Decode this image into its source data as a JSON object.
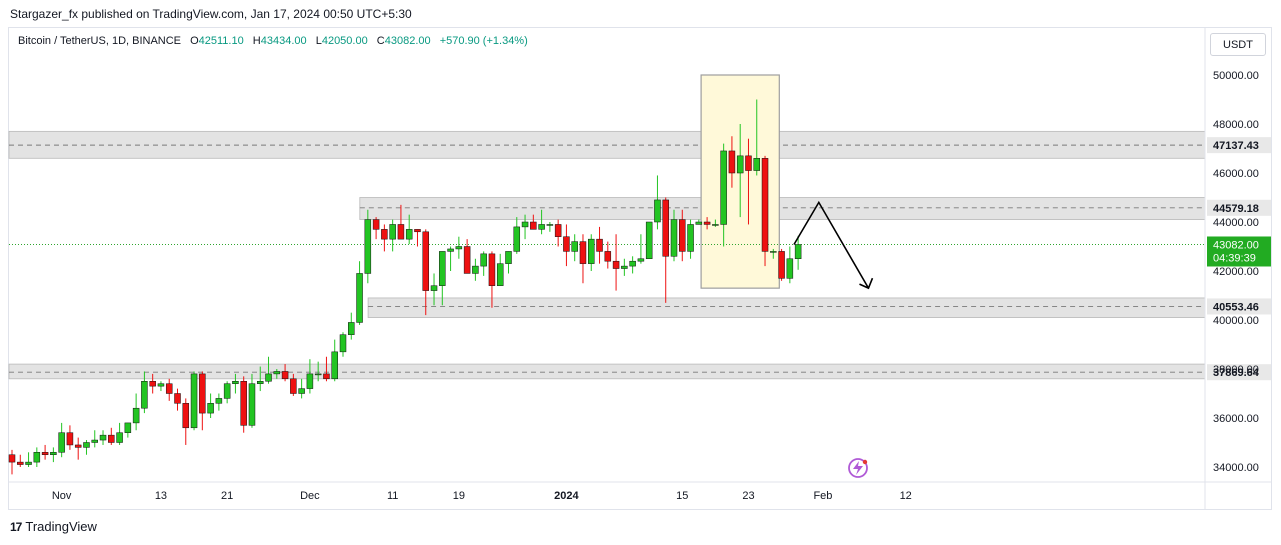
{
  "header": {
    "text": "Stargazer_fx published on TradingView.com, Jan 17, 2024 00:50 UTC+5:30"
  },
  "legend": {
    "symbol": "Bitcoin / TetherUS, 1D, BINANCE",
    "open_label": "O",
    "open": "42511.10",
    "high_label": "H",
    "high": "43434.00",
    "low_label": "L",
    "low": "42050.00",
    "close_label": "C",
    "close": "43082.00",
    "change": "+570.90 (+1.34%)"
  },
  "currency_button": "USDT",
  "footer": {
    "brand": "TradingView",
    "logo": "17"
  },
  "colors": {
    "up": "#22c422",
    "down": "#ee1111",
    "zone": "#e3e3e3",
    "highlight": "#fff9d9",
    "highlight_border": "#9e9e9e",
    "price_line": "#2fa52f"
  },
  "chart_data": {
    "type": "candlestick",
    "symbol": "Bitcoin / TetherUS",
    "interval": "1D",
    "y_ticks": [
      34000,
      36000,
      38000,
      40000,
      42000,
      44000,
      46000,
      48000,
      50000
    ],
    "y_tick_labels": [
      "34000.00",
      "36000.00",
      "38000.00",
      "40000.00",
      "42000.00",
      "44000.00",
      "46000.00",
      "48000.00",
      "50000.00"
    ],
    "x_ticks": [
      {
        "i": 6,
        "label": "Nov",
        "bold": false
      },
      {
        "i": 18,
        "label": "13",
        "bold": false
      },
      {
        "i": 26,
        "label": "21",
        "bold": false
      },
      {
        "i": 36,
        "label": "Dec",
        "bold": false
      },
      {
        "i": 46,
        "label": "11",
        "bold": false
      },
      {
        "i": 54,
        "label": "19",
        "bold": false
      },
      {
        "i": 67,
        "label": "2024",
        "bold": true
      },
      {
        "i": 81,
        "label": "15",
        "bold": false
      },
      {
        "i": 89,
        "label": "23",
        "bold": false
      },
      {
        "i": 98,
        "label": "Feb",
        "bold": false
      },
      {
        "i": 108,
        "label": "12",
        "bold": false
      }
    ],
    "ohlc": [
      [
        34500,
        34700,
        33700,
        34200
      ],
      [
        34200,
        34500,
        34000,
        34100
      ],
      [
        34100,
        34600,
        34000,
        34200
      ],
      [
        34200,
        34800,
        34000,
        34600
      ],
      [
        34600,
        34900,
        34300,
        34500
      ],
      [
        34500,
        34800,
        34200,
        34600
      ],
      [
        34600,
        35800,
        34400,
        35400
      ],
      [
        35400,
        35700,
        34700,
        34900
      ],
      [
        34900,
        35200,
        34300,
        34800
      ],
      [
        34800,
        35100,
        34500,
        35000
      ],
      [
        35000,
        35500,
        34800,
        35100
      ],
      [
        35100,
        35500,
        34900,
        35300
      ],
      [
        35300,
        35600,
        34900,
        35000
      ],
      [
        35000,
        35800,
        34900,
        35400
      ],
      [
        35400,
        35800,
        35200,
        35800
      ],
      [
        35800,
        37000,
        35500,
        36400
      ],
      [
        36400,
        37900,
        36200,
        37500
      ],
      [
        37500,
        37800,
        37000,
        37300
      ],
      [
        37300,
        37500,
        37100,
        37400
      ],
      [
        37400,
        37600,
        36700,
        37000
      ],
      [
        37000,
        37200,
        36300,
        36600
      ],
      [
        36600,
        36800,
        34900,
        35600
      ],
      [
        35600,
        37900,
        35500,
        37800
      ],
      [
        37800,
        37900,
        35500,
        36200
      ],
      [
        36200,
        37000,
        36000,
        36600
      ],
      [
        36600,
        37000,
        36300,
        36800
      ],
      [
        36800,
        37500,
        36600,
        37400
      ],
      [
        37400,
        37800,
        37000,
        37500
      ],
      [
        37500,
        37700,
        35400,
        35700
      ],
      [
        35700,
        37800,
        35600,
        37400
      ],
      [
        37400,
        38100,
        37100,
        37500
      ],
      [
        37500,
        38500,
        37400,
        37800
      ],
      [
        37800,
        38000,
        37600,
        37900
      ],
      [
        37900,
        38200,
        37500,
        37600
      ],
      [
        37600,
        37800,
        36900,
        37000
      ],
      [
        37000,
        37600,
        36800,
        37200
      ],
      [
        37200,
        38400,
        37000,
        37800
      ],
      [
        37800,
        38300,
        37500,
        37800
      ],
      [
        37800,
        38500,
        37500,
        37600
      ],
      [
        37600,
        39200,
        37500,
        38700
      ],
      [
        38700,
        39500,
        38500,
        39400
      ],
      [
        39400,
        40300,
        39200,
        39900
      ],
      [
        39900,
        42400,
        39800,
        41900
      ],
      [
        41900,
        44500,
        41500,
        44100
      ],
      [
        44100,
        44200,
        43300,
        43700
      ],
      [
        43700,
        43900,
        42800,
        43300
      ],
      [
        43300,
        44100,
        42800,
        43900
      ],
      [
        43900,
        44700,
        43400,
        43300
      ],
      [
        43300,
        44300,
        43100,
        43700
      ],
      [
        43700,
        43700,
        43000,
        43600
      ],
      [
        43600,
        43700,
        40200,
        41200
      ],
      [
        41200,
        41900,
        40600,
        41400
      ],
      [
        41400,
        42800,
        40600,
        42800
      ],
      [
        42800,
        43000,
        42000,
        42900
      ],
      [
        42900,
        43400,
        42500,
        43000
      ],
      [
        43000,
        43300,
        41900,
        41900
      ],
      [
        41900,
        42500,
        41600,
        42200
      ],
      [
        42200,
        42800,
        41800,
        42700
      ],
      [
        42700,
        42800,
        40500,
        41400
      ],
      [
        41400,
        42700,
        41400,
        42300
      ],
      [
        42300,
        42800,
        41900,
        42800
      ],
      [
        42800,
        44200,
        42700,
        43800
      ],
      [
        43800,
        44300,
        43300,
        44000
      ],
      [
        44000,
        44300,
        43700,
        43700
      ],
      [
        43700,
        44500,
        43500,
        43900
      ],
      [
        43900,
        44000,
        43600,
        43900
      ],
      [
        43900,
        44100,
        43000,
        43400
      ],
      [
        43400,
        43900,
        42200,
        42800
      ],
      [
        42800,
        43500,
        42400,
        43200
      ],
      [
        43200,
        43500,
        41500,
        42300
      ],
      [
        42300,
        43500,
        42000,
        43300
      ],
      [
        43300,
        43800,
        42300,
        42800
      ],
      [
        42800,
        43200,
        42100,
        42400
      ],
      [
        42400,
        43500,
        41200,
        42100
      ],
      [
        42100,
        42500,
        41800,
        42200
      ],
      [
        42200,
        42600,
        41900,
        42400
      ],
      [
        42400,
        43500,
        42300,
        42500
      ],
      [
        42500,
        44000,
        42500,
        44000
      ],
      [
        44000,
        45900,
        43700,
        44900
      ],
      [
        44900,
        45000,
        40700,
        42600
      ],
      [
        42600,
        44500,
        42400,
        44100
      ],
      [
        44100,
        44500,
        42400,
        42800
      ],
      [
        42800,
        44100,
        42500,
        43900
      ],
      [
        43900,
        44100,
        43900,
        44000
      ],
      [
        44000,
        44200,
        43700,
        43900
      ],
      [
        43900,
        44100,
        43800,
        43900
      ],
      [
        43900,
        47200,
        43000,
        46900
      ],
      [
        46900,
        47500,
        45400,
        46000
      ],
      [
        46000,
        48000,
        44200,
        46700
      ],
      [
        46700,
        47400,
        43900,
        46100
      ],
      [
        46100,
        49000,
        45900,
        46600
      ],
      [
        46600,
        46700,
        42200,
        42800
      ],
      [
        42800,
        42900,
        42500,
        42800
      ],
      [
        42800,
        42900,
        41600,
        41700
      ],
      [
        41700,
        43000,
        41500,
        42500
      ],
      [
        42500,
        43434,
        42050,
        43082
      ]
    ],
    "horizontal_levels": [
      {
        "label": "47137.43",
        "value": 47137.43,
        "zone": [
          46600,
          47700
        ],
        "zone_start": "left"
      },
      {
        "label": "44579.18",
        "value": 44579.18,
        "zone": [
          44100,
          45000
        ],
        "zone_start": 43
      },
      {
        "label": "40553.46",
        "value": 40553.46,
        "zone": [
          40100,
          40900
        ],
        "zone_start": 44
      },
      {
        "label": "37869.64",
        "value": 37869.64,
        "zone": [
          37600,
          38200
        ],
        "zone_start": "left"
      }
    ],
    "highlight_box": {
      "i0": 84,
      "i1": 92,
      "top": 50000,
      "bottom": 41300
    },
    "last_price_label": "43082.00",
    "countdown": "04:39:39",
    "projection": [
      [
        94.5,
        43082
      ],
      [
        97.5,
        44800
      ],
      [
        103.5,
        41300
      ]
    ]
  }
}
